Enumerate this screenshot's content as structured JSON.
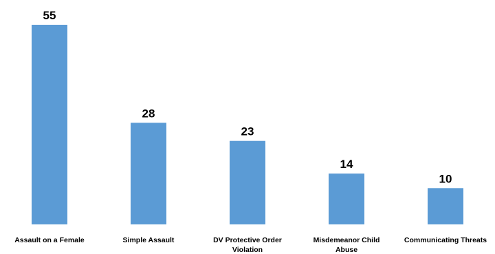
{
  "chart_data": {
    "type": "bar",
    "categories": [
      "Assault on a Female",
      "Simple Assault",
      "DV Protective Order Violation",
      "Misdemeanor Child Abuse",
      "Communicating Threats"
    ],
    "values": [
      55,
      28,
      23,
      14,
      10
    ],
    "title": "",
    "xlabel": "",
    "ylabel": "",
    "ylim": [
      0,
      55
    ],
    "grid": false,
    "legend": "none",
    "data_labels": true,
    "colors": {
      "bar": "#5B9BD5",
      "text": "#000000"
    }
  }
}
